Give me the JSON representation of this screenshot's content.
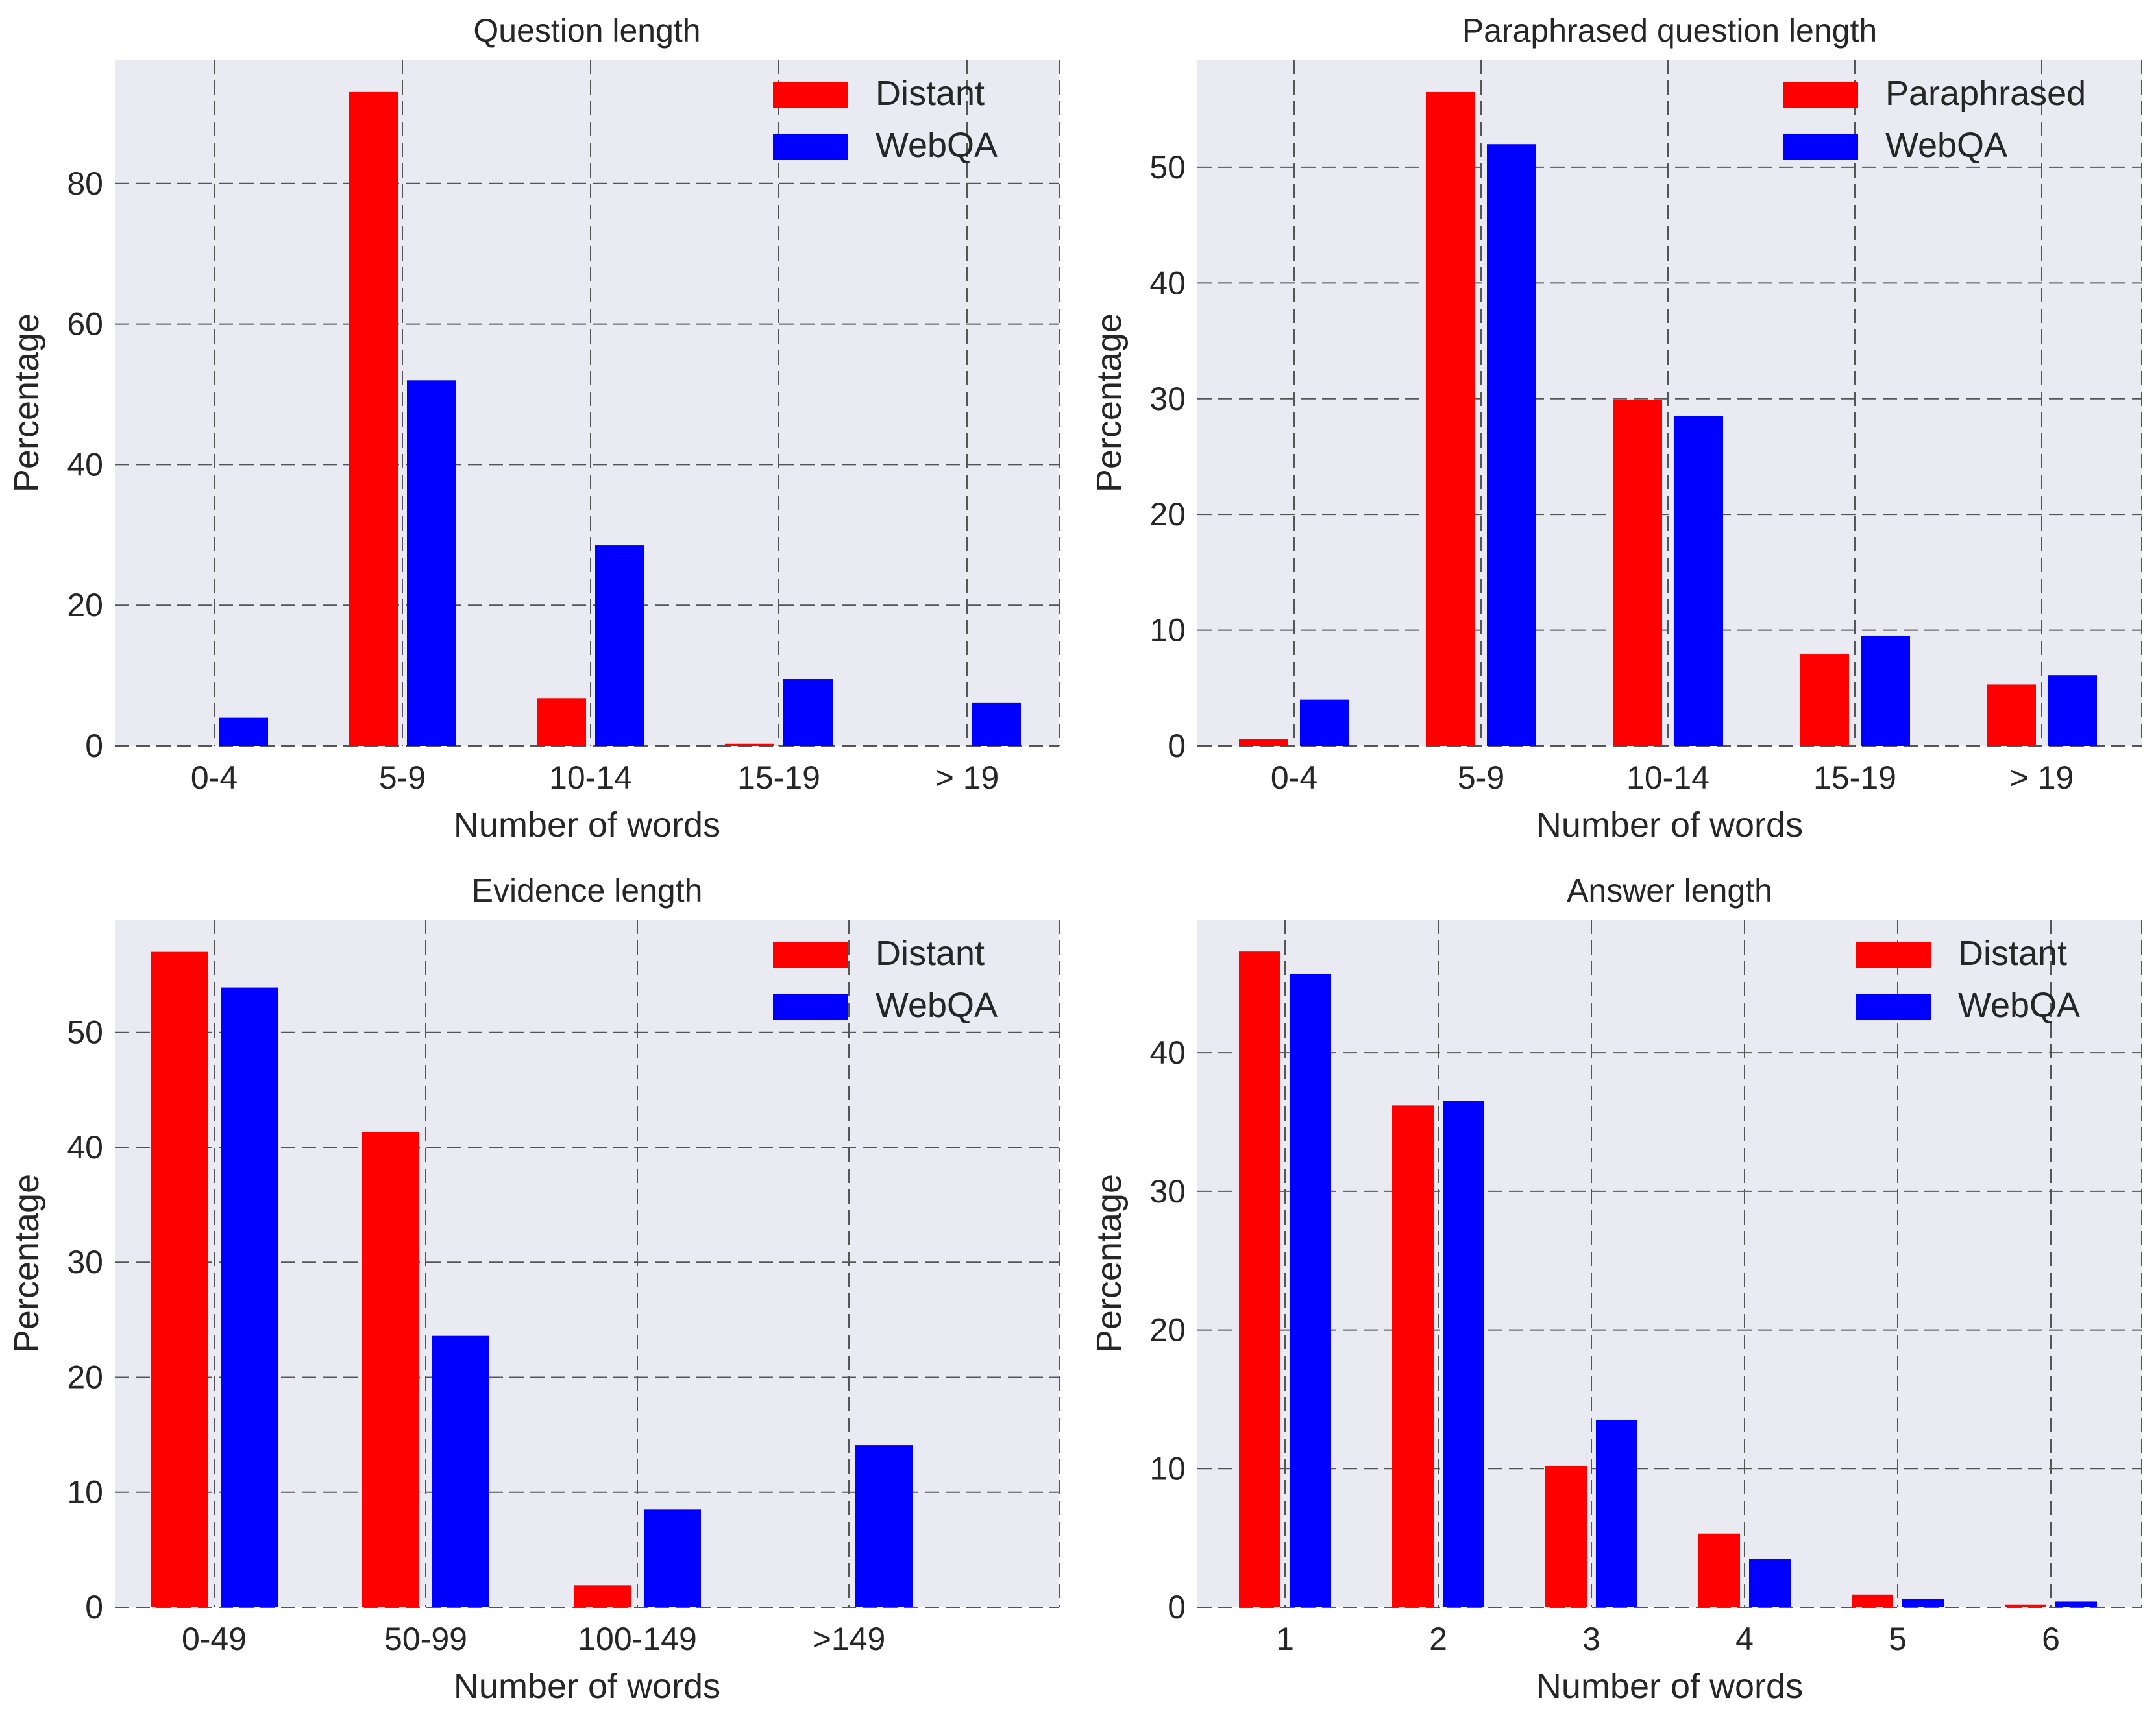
{
  "chart_data": [
    {
      "type": "bar",
      "title": "Question length",
      "xlabel": "Number of words",
      "ylabel": "Percentage",
      "categories": [
        "0-4",
        "5-9",
        "10-14",
        "15-19",
        "> 19"
      ],
      "series": [
        {
          "name": "Distant",
          "color": "#ff0000",
          "values": [
            0,
            93.0,
            6.8,
            0.3,
            0
          ]
        },
        {
          "name": "WebQA",
          "color": "#0000ff",
          "values": [
            4.0,
            52.0,
            28.5,
            9.5,
            6.1
          ]
        }
      ],
      "ylim": [
        0,
        97.6
      ],
      "yticks": [
        0,
        20,
        40,
        60,
        80
      ],
      "grid": true,
      "legend": "top-right"
    },
    {
      "type": "bar",
      "title": "Paraphrased question length",
      "xlabel": "Number of words",
      "ylabel": "Percentage",
      "categories": [
        "0-4",
        "5-9",
        "10-14",
        "15-19",
        "> 19"
      ],
      "series": [
        {
          "name": "Paraphrased",
          "color": "#ff0000",
          "values": [
            0.6,
            56.5,
            29.9,
            7.9,
            5.3
          ]
        },
        {
          "name": "WebQA",
          "color": "#0000ff",
          "values": [
            4.0,
            52.0,
            28.5,
            9.5,
            6.1
          ]
        }
      ],
      "ylim": [
        0,
        59.3
      ],
      "yticks": [
        0,
        10,
        20,
        30,
        40,
        50
      ],
      "grid": true,
      "legend": "top-right"
    },
    {
      "type": "bar",
      "title": "Evidence length",
      "xlabel": "Number of words",
      "ylabel": "Percentage",
      "categories": [
        "0-49",
        "50-99",
        "100-149",
        ">149"
      ],
      "series": [
        {
          "name": "Distant",
          "color": "#ff0000",
          "values": [
            57.0,
            41.3,
            1.9,
            0
          ]
        },
        {
          "name": "WebQA",
          "color": "#0000ff",
          "values": [
            53.9,
            23.6,
            8.5,
            14.1
          ]
        }
      ],
      "ylim": [
        0,
        59.8
      ],
      "yticks": [
        0,
        10,
        20,
        30,
        40,
        50
      ],
      "grid": true,
      "legend": "top-right"
    },
    {
      "type": "bar",
      "title": "Answer length",
      "xlabel": "Number of words",
      "ylabel": "Percentage",
      "categories": [
        "1",
        "2",
        "3",
        "4",
        "5",
        "6"
      ],
      "series": [
        {
          "name": "Distant",
          "color": "#ff0000",
          "values": [
            47.3,
            36.2,
            10.2,
            5.3,
            0.9,
            0.2
          ]
        },
        {
          "name": "WebQA",
          "color": "#0000ff",
          "values": [
            45.7,
            36.5,
            13.5,
            3.5,
            0.6,
            0.4
          ]
        }
      ],
      "ylim": [
        0,
        49.6
      ],
      "yticks": [
        0,
        10,
        20,
        30,
        40
      ],
      "grid": true,
      "legend": "top-right"
    }
  ]
}
